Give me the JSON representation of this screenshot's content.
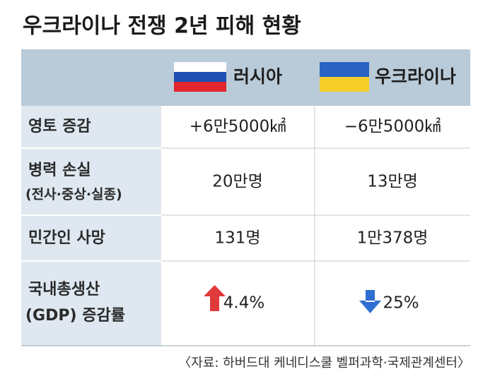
{
  "header": {
    "title": "우크라이나 전쟁 2년 피해 현황"
  },
  "table": {
    "columns": [
      "러시아",
      "우크라이나"
    ],
    "rows": [
      {
        "label": [
          "영토 증감"
        ],
        "cells": [
          "+6만5000㎢",
          "−6만5000㎢"
        ]
      },
      {
        "label": [
          "병력 손실",
          "(전사·중상·실종)"
        ],
        "cells": [
          "20만명",
          "13만명"
        ]
      },
      {
        "label": [
          "민간인 사망"
        ],
        "cells": [
          "131명",
          "1만378명"
        ]
      },
      {
        "label": [
          "국내총생산",
          "(GDP) 증감률"
        ],
        "cells": [
          "4.4%",
          "25%"
        ]
      }
    ]
  },
  "source": "〈자료: 하버드대 케네디스쿨 벨퍼과학·국제관계센터〉"
}
